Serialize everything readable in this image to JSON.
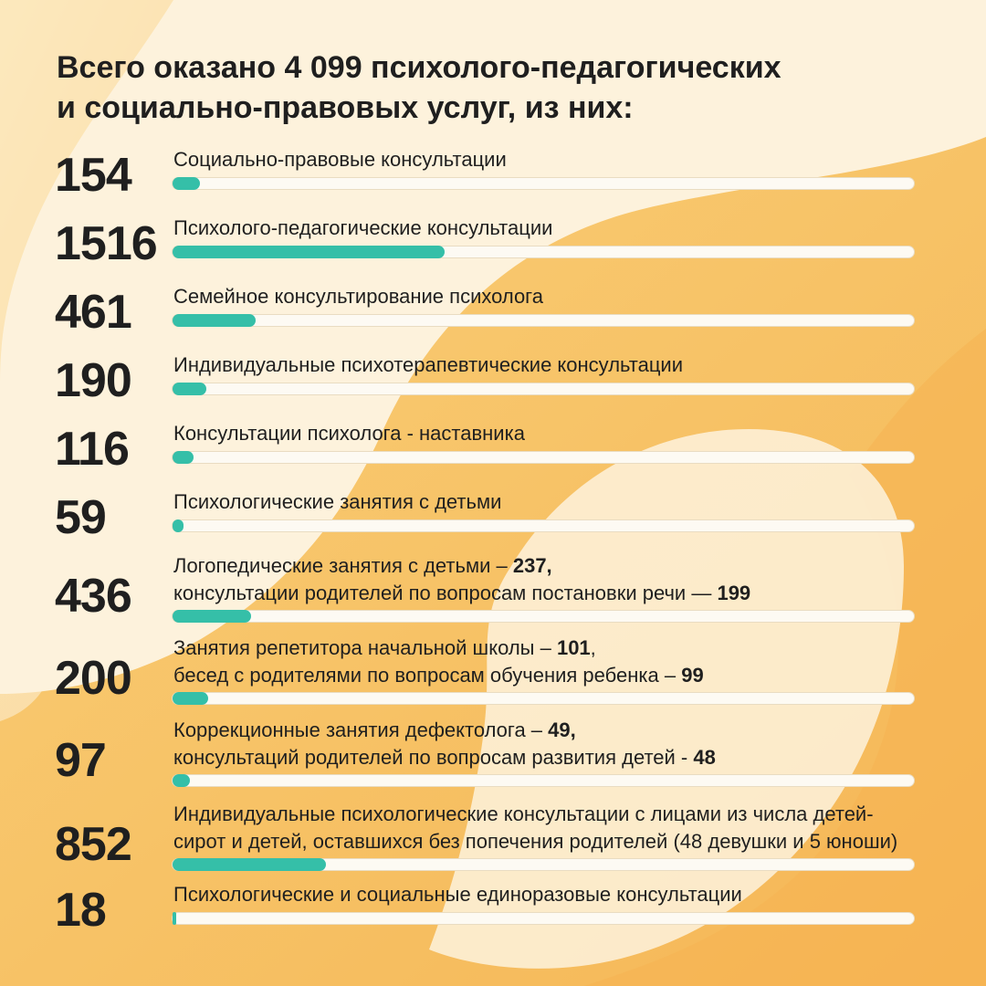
{
  "title": {
    "line1": "Всего оказано 4 099 психолого-педагогических",
    "line2": "и социально-правовых услуг, из них:"
  },
  "colors": {
    "background": "#fdf2dc",
    "blob": "#f8c56a",
    "bar_fill": "#35bfa8",
    "bar_track": "#fdfaf3",
    "text": "#1f1f1f"
  },
  "chart_data": {
    "type": "bar",
    "orientation": "horizontal",
    "title": "Всего оказано 4 099 психолого-педагогических и социально-правовых услуг, из них:",
    "xlim": [
      0,
      4099
    ],
    "grid": false,
    "categories": [
      "Социально-правовые консультации",
      "Психолого-педагогические консультации",
      "Семейное консультирование психолога",
      "Индивидуальные психотерапевтические консультации",
      "Консультации психолога - наставника",
      "Психологические занятия с детьми",
      "Логопедические занятия с детьми – 237, консультации родителей по вопросам постановки речи — 199",
      "Занятия репетитора начальной школы – 101, бесед с родителями по вопросам обучения ребенка – 99",
      "Коррекционные занятия дефектолога – 49, консультаций родителей по вопросам развития детей - 48",
      "Индивидуальные психологические консультации с лицами из числа детей-сирот и детей, оставшихся без попечения родителей (48 девушки и 5 юноши)",
      "Психологические и социальные единоразовые консультации"
    ],
    "values": [
      154,
      1516,
      461,
      190,
      116,
      59,
      436,
      200,
      97,
      852,
      18
    ]
  },
  "rows": [
    {
      "number": "154",
      "lines": [
        [
          {
            "t": "Социально-правовые консультации",
            "b": false
          }
        ]
      ]
    },
    {
      "number": "1516",
      "lines": [
        [
          {
            "t": "Психолого-педагогические консультации",
            "b": false
          }
        ]
      ]
    },
    {
      "number": "461",
      "lines": [
        [
          {
            "t": "Семейное консультирование психолога",
            "b": false
          }
        ]
      ]
    },
    {
      "number": "190",
      "lines": [
        [
          {
            "t": "Индивидуальные психотерапевтические консультации",
            "b": false
          }
        ]
      ]
    },
    {
      "number": "116",
      "lines": [
        [
          {
            "t": "Консультации психолога - наставника",
            "b": false
          }
        ]
      ]
    },
    {
      "number": "59",
      "lines": [
        [
          {
            "t": "Психологические занятия с детьми",
            "b": false
          }
        ]
      ]
    },
    {
      "number": "436",
      "lines": [
        [
          {
            "t": "Логопедические занятия с детьми – ",
            "b": false
          },
          {
            "t": "237,",
            "b": true
          }
        ],
        [
          {
            "t": "консультации родителей по вопросам постановки речи — ",
            "b": false
          },
          {
            "t": "199",
            "b": true
          }
        ]
      ]
    },
    {
      "number": "200",
      "lines": [
        [
          {
            "t": "Занятия репетитора начальной школы – ",
            "b": false
          },
          {
            "t": "101",
            "b": true
          },
          {
            "t": ",",
            "b": false
          }
        ],
        [
          {
            "t": "бесед с родителями по вопросам обучения ребенка – ",
            "b": false
          },
          {
            "t": "99",
            "b": true
          }
        ]
      ]
    },
    {
      "number": "97",
      "lines": [
        [
          {
            "t": "Коррекционные занятия дефектолога – ",
            "b": false
          },
          {
            "t": "49,",
            "b": true
          }
        ],
        [
          {
            "t": "консультаций родителей по вопросам развития детей - ",
            "b": false
          },
          {
            "t": "48",
            "b": true
          }
        ]
      ]
    },
    {
      "number": "852",
      "lines": [
        [
          {
            "t": "Индивидуальные психологические консультации с лицами из числа детей-",
            "b": false
          }
        ],
        [
          {
            "t": "сирот и детей, оставшихся без попечения родителей (48 девушки и 5 юноши)",
            "b": false
          }
        ]
      ]
    },
    {
      "number": "18",
      "lines": [
        [
          {
            "t": "Психологические и социальные единоразовые консультации",
            "b": false
          }
        ]
      ]
    }
  ]
}
